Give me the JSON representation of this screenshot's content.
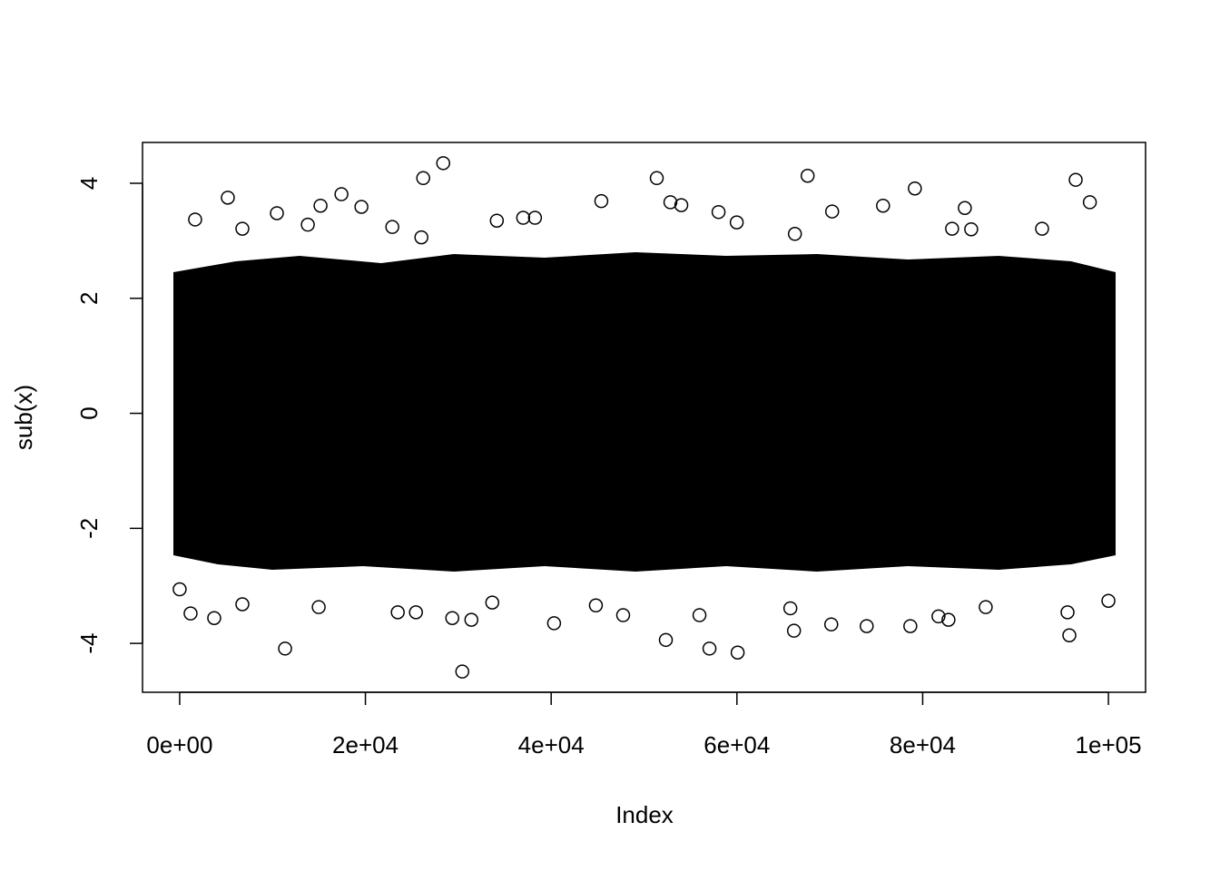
{
  "chart_data": {
    "type": "scatter",
    "xlabel": "Index",
    "ylabel": "sub(x)",
    "xlim": [
      -4000,
      104000
    ],
    "ylim": [
      -4.85,
      4.71
    ],
    "xticks": [
      {
        "value": 0,
        "label": "0e+00"
      },
      {
        "value": 20000,
        "label": "2e+04"
      },
      {
        "value": 40000,
        "label": "4e+04"
      },
      {
        "value": 60000,
        "label": "6e+04"
      },
      {
        "value": 80000,
        "label": "8e+04"
      },
      {
        "value": 100000,
        "label": "1e+05"
      }
    ],
    "yticks": [
      -4,
      -2,
      0,
      2,
      4
    ],
    "color": "#000000",
    "x": [
      28376,
      26223,
      51370,
      67613,
      96477,
      79159,
      5186,
      17417,
      45401,
      98000,
      52838,
      54012,
      15166,
      19570,
      84540,
      75734,
      10470,
      58023,
      70254,
      36986,
      38258,
      34149,
      59980,
      1663,
      22896,
      26027,
      6751,
      92857,
      85225,
      66243,
      83170,
      13797,
      30431,
      11350,
      60078,
      57045,
      52348,
      95793,
      66145,
      73973,
      78669,
      40313,
      70157,
      3718,
      29354,
      31409,
      55969,
      1174,
      23483,
      25440,
      47750,
      82779,
      81703,
      95597,
      86790,
      65753,
      14971,
      6751,
      33659,
      100000,
      0,
      44814
    ],
    "y": [
      4.35,
      4.09,
      4.09,
      4.13,
      4.06,
      3.91,
      3.75,
      3.81,
      3.69,
      3.67,
      3.67,
      3.62,
      3.61,
      3.59,
      3.57,
      3.61,
      3.48,
      3.5,
      3.51,
      3.4,
      3.4,
      3.35,
      3.32,
      3.37,
      3.24,
      3.06,
      3.21,
      3.21,
      3.2,
      3.12,
      3.21,
      3.28,
      -4.49,
      -4.09,
      -4.16,
      -4.09,
      -3.94,
      -3.86,
      -3.78,
      -3.7,
      -3.7,
      -3.65,
      -3.67,
      -3.56,
      -3.56,
      -3.59,
      -3.51,
      -3.48,
      -3.46,
      -3.46,
      -3.51,
      -3.59,
      -3.53,
      -3.46,
      -3.37,
      -3.39,
      -3.37,
      -3.32,
      -3.29,
      -3.26,
      -3.06,
      -3.34
    ]
  }
}
